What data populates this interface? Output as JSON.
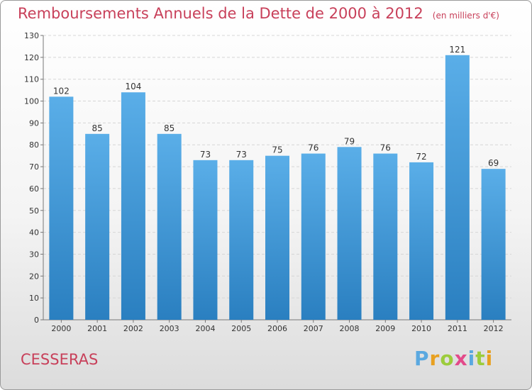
{
  "header": {
    "title": "Remboursements Annuels de la Dette de 2000 à 2012",
    "subtitle": "(en milliers d'€)"
  },
  "footer": {
    "city": "CESSERAS",
    "logo": [
      "P",
      "r",
      "o",
      "x",
      "i",
      "t",
      "i"
    ],
    "logo_colors": [
      "#5aa8e0",
      "#e8a020",
      "#9ccc3c",
      "#e34a8a",
      "#5aa8e0",
      "#9ccc3c",
      "#e8a020"
    ]
  },
  "colors": {
    "bar_light": "#5aaee8",
    "bar_dark": "#2a7fc0",
    "title": "#c8405a"
  },
  "chart_data": {
    "type": "bar",
    "title": "Remboursements Annuels de la Dette de 2000 à 2012",
    "xlabel": "",
    "ylabel": "",
    "categories": [
      "2000",
      "2001",
      "2002",
      "2003",
      "2004",
      "2005",
      "2006",
      "2007",
      "2008",
      "2009",
      "2010",
      "2011",
      "2012"
    ],
    "values": [
      102,
      85,
      104,
      85,
      73,
      73,
      75,
      76,
      79,
      76,
      72,
      121,
      69
    ],
    "ylim": [
      0,
      130
    ],
    "yticks": [
      0,
      10,
      20,
      30,
      40,
      50,
      60,
      70,
      80,
      90,
      100,
      110,
      120,
      130
    ],
    "grid": true
  }
}
